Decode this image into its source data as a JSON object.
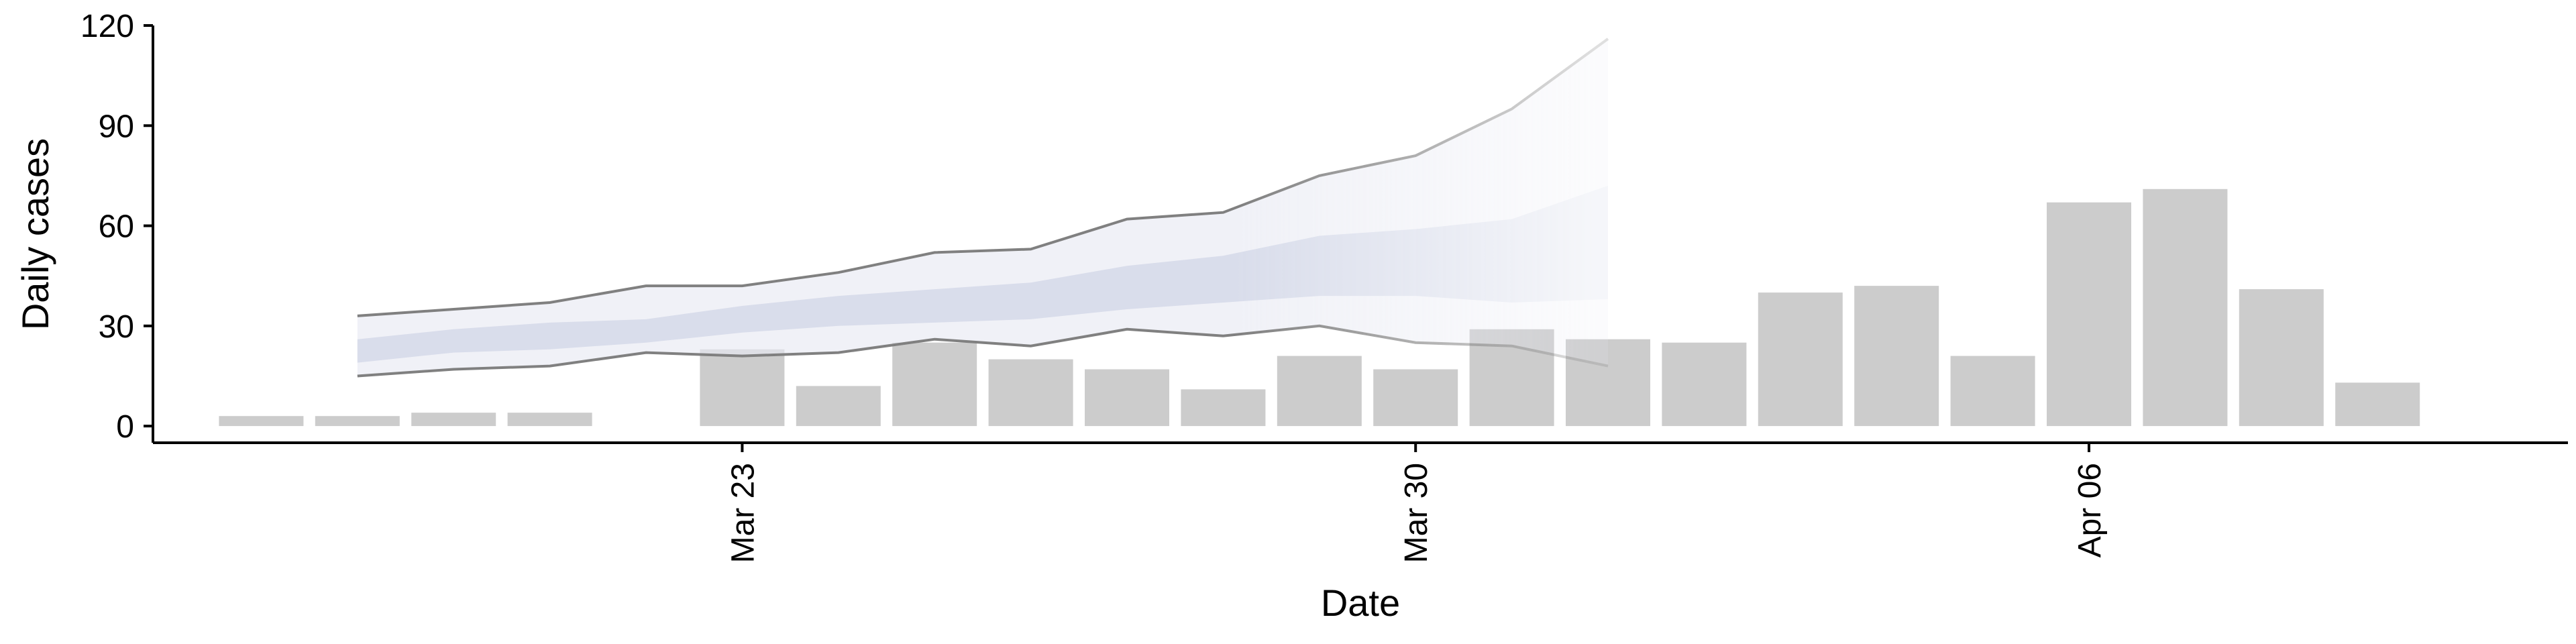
{
  "chart_data": {
    "type": "bar",
    "xlabel": "Date",
    "ylabel": "Daily cases",
    "ylim": [
      -5,
      120
    ],
    "y_ticks": [
      "0",
      "30",
      "60",
      "90",
      "120"
    ],
    "y_tick_values": [
      0,
      30,
      60,
      90,
      120
    ],
    "x_ticks": [
      "Mar 23",
      "Mar 30",
      "Apr 06"
    ],
    "x_tick_dates": [
      "2020-03-23",
      "2020-03-30",
      "2020-04-06"
    ],
    "xlim": [
      "2020-03-17",
      "2020-04-12"
    ],
    "grid": false,
    "legend": "none",
    "bars": {
      "name": "",
      "color": "#cccccc",
      "x": [
        "2020-03-18",
        "2020-03-19",
        "2020-03-20",
        "2020-03-21",
        "2020-03-22",
        "2020-03-23",
        "2020-03-24",
        "2020-03-25",
        "2020-03-26",
        "2020-03-27",
        "2020-03-28",
        "2020-03-29",
        "2020-03-30",
        "2020-03-31",
        "2020-04-01",
        "2020-04-02",
        "2020-04-03",
        "2020-04-04",
        "2020-04-05",
        "2020-04-06",
        "2020-04-07",
        "2020-04-08",
        "2020-04-09",
        "2020-04-10",
        "2020-04-11"
      ],
      "values": [
        3,
        3,
        4,
        4,
        0,
        23,
        12,
        25,
        20,
        17,
        11,
        21,
        17,
        29,
        26,
        25,
        40,
        42,
        21,
        67,
        71,
        41,
        13,
        0,
        0
      ]
    },
    "estimate": {
      "x": [
        "2020-03-19",
        "2020-03-20",
        "2020-03-21",
        "2020-03-22",
        "2020-03-23",
        "2020-03-24",
        "2020-03-25",
        "2020-03-26",
        "2020-03-27",
        "2020-03-28",
        "2020-03-29",
        "2020-03-30",
        "2020-03-31",
        "2020-04-01"
      ],
      "upper_90": [
        33,
        35,
        37,
        42,
        42,
        46,
        52,
        53,
        62,
        64,
        75,
        81,
        95,
        116
      ],
      "upper_50": [
        26,
        29,
        31,
        32,
        36,
        39,
        41,
        43,
        48,
        51,
        57,
        59,
        62,
        72
      ],
      "lower_50": [
        19,
        22,
        23,
        25,
        28,
        30,
        31,
        32,
        35,
        37,
        39,
        39,
        37,
        38
      ],
      "lower_90": [
        15,
        17,
        18,
        22,
        21,
        22,
        26,
        24,
        29,
        27,
        30,
        25,
        24,
        18
      ],
      "band_90_color": "#e8eaf2",
      "band_50_color": "#c9cfe2",
      "line_color": "#808080"
    }
  }
}
